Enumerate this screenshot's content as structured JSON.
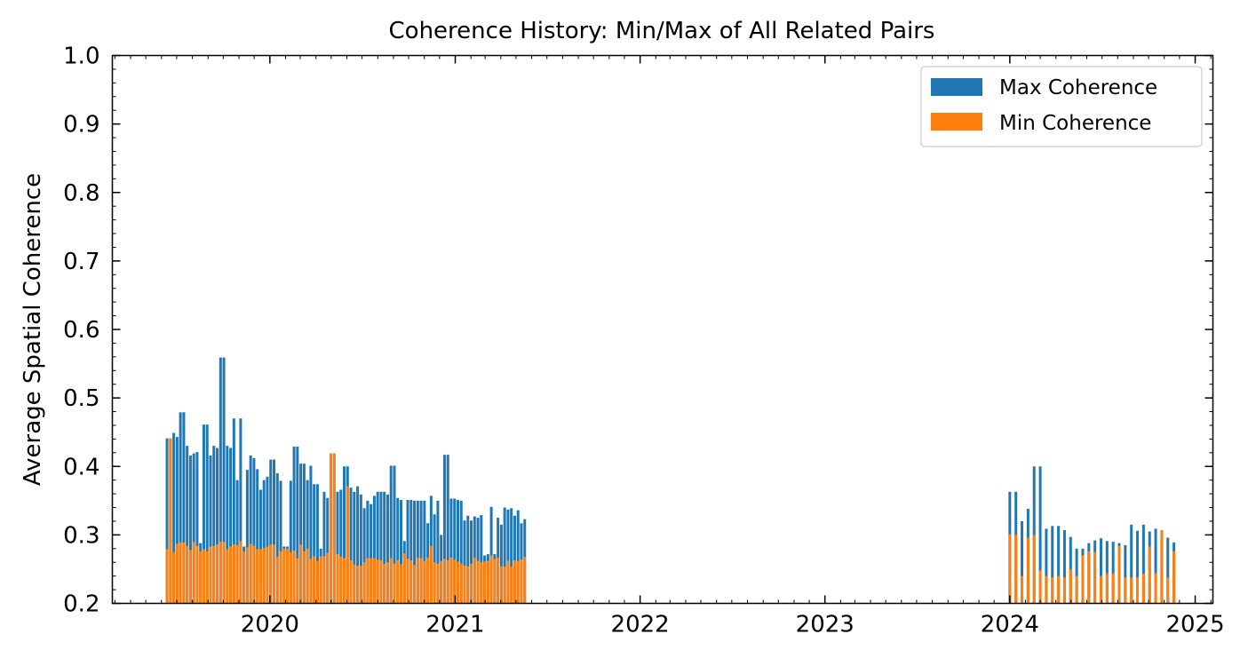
{
  "chart_data": {
    "type": "bar",
    "title": "Coherence History: Min/Max of All Related Pairs",
    "xlabel": "",
    "ylabel": "Average Spatial Coherence",
    "ylim": [
      0.2,
      1.0
    ],
    "xlim": [
      "2019-02-24",
      "2025-02-05"
    ],
    "x_ticks": [
      "2020",
      "2021",
      "2022",
      "2023",
      "2024",
      "2025"
    ],
    "y_ticks": [
      "0.2",
      "0.3",
      "0.4",
      "0.5",
      "0.6",
      "0.7",
      "0.8",
      "0.9",
      "1.0"
    ],
    "grid": false,
    "legend_position": "top-right",
    "colors": {
      "max": "#1f77b4",
      "min": "#ff7f0e"
    },
    "series": [
      {
        "name": "Max Coherence",
        "values": [
          0.441,
          0.441,
          0.449,
          0.443,
          0.479,
          0.479,
          0.43,
          0.416,
          0.419,
          0.421,
          0.288,
          0.461,
          0.461,
          0.416,
          0.43,
          0.427,
          0.559,
          0.559,
          0.43,
          0.427,
          0.47,
          0.38,
          0.47,
          0.283,
          0.395,
          0.416,
          0.412,
          0.396,
          0.366,
          0.38,
          0.385,
          0.41,
          0.41,
          0.39,
          0.379,
          0.283,
          0.283,
          0.379,
          0.429,
          0.429,
          0.404,
          0.404,
          0.38,
          0.401,
          0.374,
          0.374,
          0.28,
          0.363,
          0.354,
          0.419,
          0.419,
          0.363,
          0.366,
          0.4,
          0.4,
          0.369,
          0.363,
          0.371,
          0.359,
          0.339,
          0.35,
          0.345,
          0.357,
          0.363,
          0.363,
          0.363,
          0.359,
          0.401,
          0.401,
          0.354,
          0.351,
          0.291,
          0.351,
          0.351,
          0.35,
          0.35,
          0.35,
          0.35,
          0.317,
          0.357,
          0.33,
          0.35,
          0.3,
          0.417,
          0.417,
          0.353,
          0.353,
          0.351,
          0.35,
          0.321,
          0.328,
          0.321,
          0.327,
          0.325,
          0.329,
          0.27,
          0.272,
          0.341,
          0.272,
          0.325,
          0.315,
          0.34,
          0.337,
          0.339,
          0.328,
          0.336,
          0.317,
          0.323,
          0.363,
          0.363,
          0.32,
          0.338,
          0.4,
          0.4,
          0.309,
          0.313,
          0.313,
          0.307,
          0.297,
          0.28,
          0.28,
          0.288,
          0.292,
          0.295,
          0.291,
          0.29,
          0.288,
          0.285,
          0.315,
          0.306,
          0.315,
          0.305,
          0.309,
          0.296,
          0.296,
          0.289
        ],
        "min_values": [
          0.279,
          0.441,
          0.275,
          0.287,
          0.289,
          0.289,
          0.284,
          0.278,
          0.29,
          0.284,
          0.276,
          0.279,
          0.276,
          0.283,
          0.284,
          0.286,
          0.29,
          0.29,
          0.279,
          0.283,
          0.286,
          0.285,
          0.291,
          0.276,
          0.282,
          0.287,
          0.284,
          0.279,
          0.279,
          0.281,
          0.283,
          0.286,
          0.286,
          0.268,
          0.276,
          0.28,
          0.28,
          0.275,
          0.277,
          0.266,
          0.286,
          0.276,
          0.28,
          0.265,
          0.269,
          0.262,
          0.269,
          0.269,
          0.274,
          0.419,
          0.419,
          0.272,
          0.268,
          0.266,
          0.371,
          0.263,
          0.257,
          0.255,
          0.255,
          0.26,
          0.266,
          0.266,
          0.266,
          0.264,
          0.263,
          0.258,
          0.26,
          0.266,
          0.258,
          0.263,
          0.257,
          0.273,
          0.265,
          0.263,
          0.256,
          0.267,
          0.266,
          0.262,
          0.267,
          0.284,
          0.26,
          0.258,
          0.262,
          0.265,
          0.263,
          0.267,
          0.264,
          0.261,
          0.258,
          0.255,
          0.254,
          0.258,
          0.267,
          0.262,
          0.26,
          0.261,
          0.262,
          0.27,
          0.265,
          0.267,
          0.254,
          0.254,
          0.262,
          0.254,
          0.263,
          0.262,
          0.264,
          0.268,
          0.301,
          0.3,
          0.24,
          0.296,
          0.3,
          0.248,
          0.24,
          0.238,
          0.24,
          0.238,
          0.25,
          0.24,
          0.27,
          0.276,
          0.275,
          0.24,
          0.244,
          0.244,
          0.284,
          0.238,
          0.238,
          0.238,
          0.243,
          0.283,
          0.244,
          0.307,
          0.238,
          0.276,
          0.283,
          0.288
        ]
      },
      {
        "name": "Min Coherence"
      }
    ]
  }
}
